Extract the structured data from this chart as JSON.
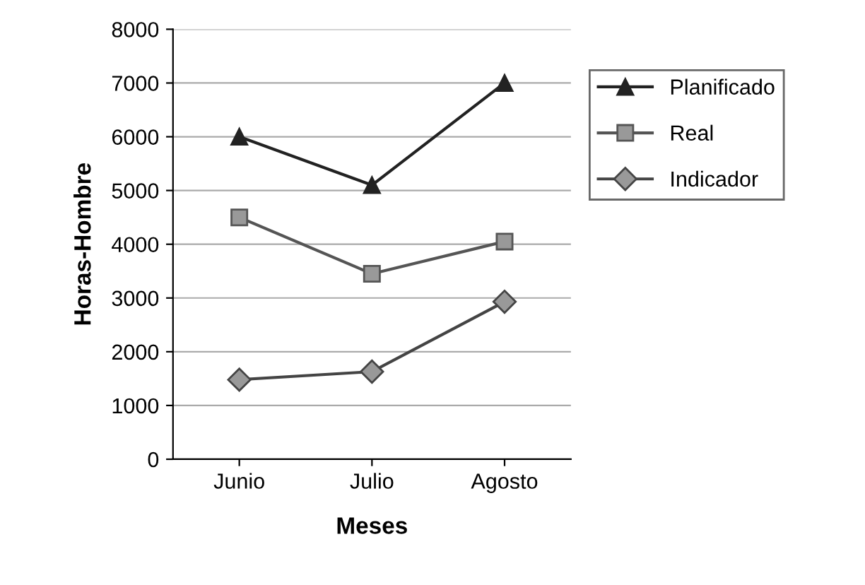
{
  "chart_data": {
    "type": "line",
    "xlabel": "Meses",
    "ylabel": "Horas-Hombre",
    "categories": [
      "Junio",
      "Julio",
      "Agosto"
    ],
    "series": [
      {
        "name": "Planificado",
        "color": "#222222",
        "marker": "triangle",
        "values": [
          6000,
          5100,
          7000
        ]
      },
      {
        "name": "Real",
        "color": "#555555",
        "marker": "square",
        "values": [
          4500,
          3450,
          4050
        ]
      },
      {
        "name": "Indicador",
        "color": "#444444",
        "marker": "diamond",
        "values": [
          1480,
          1630,
          2930
        ]
      }
    ],
    "ylim": [
      0,
      8000
    ],
    "yticks": [
      0,
      1000,
      2000,
      3000,
      4000,
      5000,
      6000,
      7000,
      8000
    ],
    "grid": "y",
    "legend": "right",
    "line_style": "solid"
  }
}
